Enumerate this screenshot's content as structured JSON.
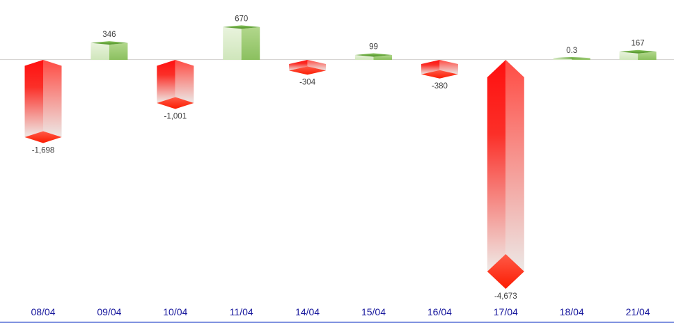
{
  "chart_data": {
    "type": "bar",
    "style": "3d-box",
    "title": "",
    "xlabel": "",
    "ylabel": "",
    "categories": [
      "08/04",
      "09/04",
      "10/04",
      "11/04",
      "14/04",
      "15/04",
      "16/04",
      "17/04",
      "18/04",
      "21/04"
    ],
    "values": [
      -1698,
      346,
      -1001,
      670,
      -304,
      99,
      -380,
      -4673,
      0.3,
      167
    ],
    "value_labels": [
      "-1,698",
      "346",
      "-1,001",
      "670",
      "-304",
      "99",
      "-380",
      "-4,673",
      "0.3",
      "167"
    ],
    "ylim": [
      -4900,
      900
    ],
    "baseline_value": 0,
    "grid": false,
    "legend": null,
    "colors": {
      "positive_face_light": "#e9f3dd",
      "positive_face_light_bottom": "#cfe6bb",
      "positive_face_mid_top": "#b2d78c",
      "positive_face_mid_bottom": "#8bc05f",
      "positive_top_light": "#8cc661",
      "positive_top_dark": "#4a8d22",
      "negative_top_red": "#ff0f0f",
      "negative_mid_red": "#fb2f28",
      "negative_fade": "#efeae7",
      "negative_right_top": "#ff4b43",
      "negative_right_fade": "#ece8e6",
      "negative_diamond_light": "#ff5a47",
      "negative_diamond_dark": "#fb1c02",
      "axis_line": "#d7d5d3",
      "value_label": "#3d3d3d",
      "category_label": "#16169c",
      "bottom_rule": "#6078d8",
      "background": "#ffffff"
    }
  }
}
